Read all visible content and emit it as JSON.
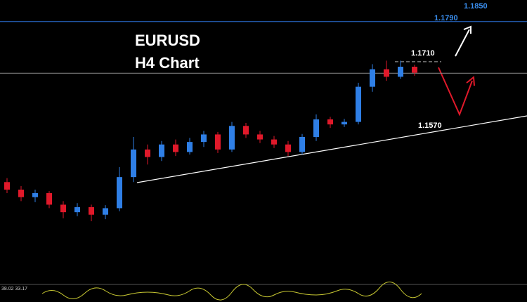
{
  "chart_data": {
    "type": "candlestick",
    "title": "EURUSD",
    "subtitle": "H4 Chart",
    "open": [
      1.147,
      1.1455,
      1.144,
      1.1448,
      1.1425,
      1.141,
      1.142,
      1.1405,
      1.1418,
      1.148,
      1.1535,
      1.152,
      1.1545,
      1.153,
      1.155,
      1.1565,
      1.1535,
      1.1582,
      1.1565,
      1.1555,
      1.1545,
      1.153,
      1.156,
      1.1595,
      1.1585,
      1.159,
      1.166,
      1.1695,
      1.168,
      1.17
    ],
    "high": [
      1.1478,
      1.1462,
      1.1455,
      1.1452,
      1.1432,
      1.1428,
      1.1425,
      1.1424,
      1.15,
      1.156,
      1.1545,
      1.1552,
      1.1555,
      1.1558,
      1.1572,
      1.157,
      1.159,
      1.1588,
      1.1572,
      1.1562,
      1.1552,
      1.1566,
      1.1605,
      1.16,
      1.1596,
      1.1668,
      1.1705,
      1.1712,
      1.1712,
      1.1704
    ],
    "low": [
      1.1448,
      1.1432,
      1.143,
      1.1418,
      1.1398,
      1.1402,
      1.1392,
      1.1396,
      1.1412,
      1.147,
      1.1505,
      1.1512,
      1.1522,
      1.1525,
      1.154,
      1.1528,
      1.153,
      1.1558,
      1.1548,
      1.1538,
      1.1522,
      1.1525,
      1.1552,
      1.1578,
      1.158,
      1.1585,
      1.165,
      1.1672,
      1.1676,
      1.1682
    ],
    "close": [
      1.1455,
      1.144,
      1.1448,
      1.1425,
      1.141,
      1.142,
      1.1405,
      1.1418,
      1.148,
      1.1535,
      1.152,
      1.1545,
      1.153,
      1.155,
      1.1565,
      1.1535,
      1.1582,
      1.1565,
      1.1555,
      1.1545,
      1.153,
      1.156,
      1.1595,
      1.1585,
      1.159,
      1.166,
      1.1695,
      1.168,
      1.17,
      1.1688
    ],
    "up_color": "#2f7fe6",
    "down_color": "#e0192a",
    "ylim": [
      1.1266,
      1.1833
    ],
    "hlines": [
      {
        "value": 1.179,
        "color": "#2a6fd6"
      },
      {
        "value": 1.1687,
        "color": "#8a8a8a"
      }
    ],
    "dashed_level": 1.171,
    "trendline": [
      1.1469,
      1.1602
    ],
    "levels": [
      "1.1850",
      "1.1790",
      "1.1710",
      "1.1570"
    ],
    "indicator": "38.02 33.17"
  }
}
